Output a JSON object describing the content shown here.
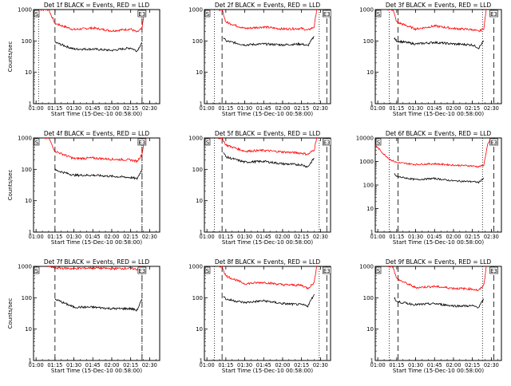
{
  "chart_data": [
    {
      "type": "line",
      "title": "Det 1f BLACK = Events, RED = LLD",
      "xlabel": "Start Time (15-Dec-10 00:58:00)",
      "ylabel": "Counts/sec",
      "yscale": "log",
      "ylim": [
        1,
        1000
      ],
      "xlim": [
        "00:58",
        "02:38"
      ],
      "x_ticks": [
        "01:00",
        "01:15",
        "01:30",
        "01:45",
        "02:00",
        "02:15",
        "02:30"
      ],
      "y_ticks": [
        "1",
        "10",
        "100",
        "1000"
      ],
      "markers": {
        "start": "S",
        "end": "E3"
      },
      "vertical_lines": {
        "dotted": [
          "01:02",
          "02:24"
        ],
        "dashed": [
          "01:15",
          "02:24"
        ]
      },
      "series": [
        {
          "color": "#ff0000",
          "x": [
            "01:03",
            "01:10",
            "01:15",
            "01:30",
            "01:45",
            "02:00",
            "02:15",
            "02:20",
            "02:24",
            "02:26"
          ],
          "values": [
            1000,
            1000,
            360,
            230,
            260,
            210,
            240,
            190,
            250,
            1000
          ]
        },
        {
          "color": "#000000",
          "x": [
            "01:15",
            "01:30",
            "01:45",
            "02:00",
            "02:15",
            "02:20",
            "02:24"
          ],
          "values": [
            90,
            55,
            55,
            50,
            60,
            48,
            90
          ]
        }
      ]
    },
    {
      "type": "line",
      "title": "Det 2f BLACK = Events, RED = LLD",
      "xlabel": "Start Time (15-Dec-10 00:58:00)",
      "ylabel": "",
      "yscale": "log",
      "ylim": [
        1,
        1000
      ],
      "xlim": [
        "00:58",
        "02:38"
      ],
      "x_ticks": [
        "01:00",
        "01:15",
        "01:30",
        "01:45",
        "02:00",
        "02:15",
        "02:30"
      ],
      "y_ticks": [
        "1",
        "10",
        "100",
        "1000"
      ],
      "markers": {
        "start": "S",
        "end": "E3"
      },
      "vertical_lines": {
        "dotted": [
          "01:06",
          "02:29"
        ],
        "dashed": [
          "01:12",
          "02:35"
        ]
      },
      "series": [
        {
          "color": "#ff0000",
          "x": [
            "01:09",
            "01:12",
            "01:15",
            "01:30",
            "01:45",
            "02:00",
            "02:15",
            "02:20",
            "02:25",
            "02:27"
          ],
          "values": [
            1000,
            1000,
            400,
            250,
            280,
            240,
            250,
            220,
            280,
            1000
          ]
        },
        {
          "color": "#000000",
          "x": [
            "01:13",
            "01:15",
            "01:30",
            "01:45",
            "02:00",
            "02:15",
            "02:20",
            "02:25"
          ],
          "values": [
            130,
            100,
            75,
            80,
            75,
            80,
            70,
            140
          ]
        }
      ]
    },
    {
      "type": "line",
      "title": "Det 3f BLACK = Events, RED = LLD",
      "xlabel": "Start Time (15-Dec-10 00:58:00)",
      "ylabel": "",
      "yscale": "log",
      "ylim": [
        1,
        1000
      ],
      "xlim": [
        "00:58",
        "02:38"
      ],
      "x_ticks": [
        "01:00",
        "01:15",
        "01:30",
        "01:45",
        "02:00",
        "02:15",
        "02:30"
      ],
      "y_ticks": [
        "1",
        "10",
        "100",
        "1000"
      ],
      "markers": {
        "start": "S",
        "end": "E3"
      },
      "vertical_lines": {
        "dotted": [
          "01:09",
          "02:23"
        ],
        "dashed": [
          "01:16",
          "02:32"
        ]
      },
      "series": [
        {
          "color": "#ff0000",
          "x": [
            "01:08",
            "01:12",
            "01:15",
            "01:30",
            "01:45",
            "02:00",
            "02:15",
            "02:20",
            "02:24",
            "02:26"
          ],
          "values": [
            1000,
            1000,
            400,
            240,
            300,
            250,
            230,
            200,
            250,
            1000
          ]
        },
        {
          "color": "#000000",
          "x": [
            "01:13",
            "01:15",
            "01:30",
            "01:45",
            "02:00",
            "02:15",
            "02:20",
            "02:24"
          ],
          "values": [
            120,
            100,
            80,
            90,
            80,
            75,
            60,
            100
          ]
        }
      ]
    },
    {
      "type": "line",
      "title": "Det 4f BLACK = Events, RED = LLD",
      "xlabel": "Start Time (15-Dec-10 00:58:00)",
      "ylabel": "Counts/sec",
      "yscale": "log",
      "ylim": [
        1,
        1000
      ],
      "xlim": [
        "00:58",
        "02:38"
      ],
      "x_ticks": [
        "01:00",
        "01:15",
        "01:30",
        "01:45",
        "02:00",
        "02:15",
        "02:30"
      ],
      "y_ticks": [
        "1",
        "10",
        "100",
        "1000"
      ],
      "markers": {
        "start": "S",
        "end": "E3"
      },
      "vertical_lines": {
        "dotted": [
          "02:24"
        ],
        "dashed": [
          "01:15",
          "02:24"
        ]
      },
      "series": [
        {
          "color": "#ff0000",
          "x": [
            "01:06",
            "01:10",
            "01:15",
            "01:30",
            "01:45",
            "02:00",
            "02:15",
            "02:20",
            "02:24",
            "02:26"
          ],
          "values": [
            1000,
            1000,
            380,
            220,
            230,
            210,
            200,
            180,
            300,
            1000
          ]
        },
        {
          "color": "#000000",
          "x": [
            "01:15",
            "01:30",
            "01:45",
            "02:00",
            "02:15",
            "02:20",
            "02:24"
          ],
          "values": [
            95,
            65,
            65,
            60,
            55,
            50,
            100
          ]
        }
      ]
    },
    {
      "type": "line",
      "title": "Det 5f BLACK = Events, RED = LLD",
      "xlabel": "Start Time (15-Dec-10 00:58:00)",
      "ylabel": "",
      "yscale": "log",
      "ylim": [
        1,
        1000
      ],
      "xlim": [
        "00:58",
        "02:38"
      ],
      "x_ticks": [
        "01:00",
        "01:15",
        "01:30",
        "01:45",
        "02:00",
        "02:15",
        "02:30"
      ],
      "y_ticks": [
        "1",
        "10",
        "100",
        "1000"
      ],
      "markers": {
        "start": "S",
        "end": "E3"
      },
      "vertical_lines": {
        "dotted": [
          "01:06",
          "02:29"
        ],
        "dashed": [
          "01:12",
          "02:35"
        ]
      },
      "series": [
        {
          "color": "#ff0000",
          "x": [
            "01:09",
            "01:12",
            "01:15",
            "01:30",
            "01:45",
            "02:00",
            "02:15",
            "02:20",
            "02:25",
            "02:27"
          ],
          "values": [
            1000,
            1000,
            600,
            380,
            400,
            360,
            330,
            300,
            420,
            1000
          ]
        },
        {
          "color": "#000000",
          "x": [
            "01:13",
            "01:15",
            "01:30",
            "01:45",
            "02:00",
            "02:15",
            "02:20",
            "02:25"
          ],
          "values": [
            350,
            250,
            170,
            180,
            150,
            140,
            120,
            230
          ]
        }
      ]
    },
    {
      "type": "line",
      "title": "Det 6f BLACK = Events, RED = LLD",
      "xlabel": "Start Time (15-Dec-10 00:58:00)",
      "ylabel": "",
      "yscale": "log",
      "ylim": [
        1,
        10000
      ],
      "xlim": [
        "00:58",
        "02:38"
      ],
      "x_ticks": [
        "01:00",
        "01:15",
        "01:30",
        "01:45",
        "02:00",
        "02:15",
        "02:30"
      ],
      "y_ticks": [
        "1",
        "10",
        "100",
        "1000",
        "10000"
      ],
      "markers": {
        "start": "S",
        "end": "E3"
      },
      "vertical_lines": {
        "dotted": [
          "01:09",
          "02:23"
        ],
        "dashed": [
          "01:16",
          "02:32"
        ]
      },
      "series": [
        {
          "color": "#ff0000",
          "x": [
            "00:58",
            "01:05",
            "01:10",
            "01:15",
            "01:30",
            "01:45",
            "02:00",
            "02:15",
            "02:20",
            "02:24",
            "02:27",
            "02:30"
          ],
          "values": [
            5000,
            2000,
            1200,
            900,
            750,
            800,
            700,
            650,
            600,
            700,
            5000,
            10000
          ]
        },
        {
          "color": "#000000",
          "x": [
            "01:13",
            "01:15",
            "01:30",
            "01:45",
            "02:00",
            "02:15",
            "02:20",
            "02:24"
          ],
          "values": [
            300,
            230,
            170,
            190,
            150,
            140,
            130,
            200
          ]
        }
      ]
    },
    {
      "type": "line",
      "title": "Det 7f BLACK = Events, RED = LLD",
      "xlabel": "Start Time (15-Dec-10 00:58:00)",
      "ylabel": "Counts/sec",
      "yscale": "log",
      "ylim": [
        1,
        1000
      ],
      "xlim": [
        "00:58",
        "02:38"
      ],
      "x_ticks": [
        "01:00",
        "01:15",
        "01:30",
        "01:45",
        "02:00",
        "02:15",
        "02:30"
      ],
      "y_ticks": [
        "1",
        "10",
        "100",
        "1000"
      ],
      "markers": {
        "start": "S",
        "end": "E3"
      },
      "vertical_lines": {
        "dotted": [
          "02:24"
        ],
        "dashed": [
          "01:15",
          "02:24"
        ]
      },
      "series": [
        {
          "color": "#ff0000",
          "x": [
            "01:06",
            "01:10",
            "01:15",
            "01:30",
            "01:45",
            "02:00",
            "02:15",
            "02:20",
            "02:24"
          ],
          "values": [
            1000,
            1000,
            900,
            850,
            900,
            850,
            870,
            800,
            1000
          ]
        },
        {
          "color": "#000000",
          "x": [
            "01:15",
            "01:30",
            "01:45",
            "02:00",
            "02:15",
            "02:20",
            "02:24"
          ],
          "values": [
            90,
            50,
            50,
            45,
            45,
            40,
            90
          ]
        }
      ]
    },
    {
      "type": "line",
      "title": "Det 8f BLACK = Events, RED = LLD",
      "xlabel": "Start Time (15-Dec-10 00:58:00)",
      "ylabel": "",
      "yscale": "log",
      "ylim": [
        1,
        1000
      ],
      "xlim": [
        "00:58",
        "02:38"
      ],
      "x_ticks": [
        "01:00",
        "01:15",
        "01:30",
        "01:45",
        "02:00",
        "02:15",
        "02:30"
      ],
      "y_ticks": [
        "1",
        "10",
        "100",
        "1000"
      ],
      "markers": {
        "start": "S",
        "end": "E3"
      },
      "vertical_lines": {
        "dotted": [
          "01:06",
          "02:29"
        ],
        "dashed": [
          "01:12",
          "02:35"
        ]
      },
      "series": [
        {
          "color": "#ff0000",
          "x": [
            "01:09",
            "01:12",
            "01:15",
            "01:30",
            "01:45",
            "02:00",
            "02:15",
            "02:20",
            "02:25",
            "02:27"
          ],
          "values": [
            1000,
            1000,
            500,
            280,
            310,
            260,
            250,
            200,
            300,
            1000
          ]
        },
        {
          "color": "#000000",
          "x": [
            "01:13",
            "01:15",
            "01:30",
            "01:45",
            "02:00",
            "02:15",
            "02:20",
            "02:25"
          ],
          "values": [
            120,
            90,
            70,
            80,
            65,
            60,
            55,
            130
          ]
        }
      ]
    },
    {
      "type": "line",
      "title": "Det 9f BLACK = Events, RED = LLD",
      "xlabel": "Start Time (15-Dec-10 00:58:00)",
      "ylabel": "",
      "yscale": "log",
      "ylim": [
        1,
        1000
      ],
      "xlim": [
        "00:58",
        "02:38"
      ],
      "x_ticks": [
        "01:00",
        "01:15",
        "01:30",
        "01:45",
        "02:00",
        "02:15",
        "02:30"
      ],
      "y_ticks": [
        "1",
        "10",
        "100",
        "1000"
      ],
      "markers": {
        "start": "S",
        "end": "E3"
      },
      "vertical_lines": {
        "dotted": [
          "01:09",
          "02:23"
        ],
        "dashed": [
          "01:16",
          "02:32"
        ]
      },
      "series": [
        {
          "color": "#ff0000",
          "x": [
            "01:08",
            "01:12",
            "01:15",
            "01:30",
            "01:45",
            "02:00",
            "02:15",
            "02:20",
            "02:24",
            "02:26"
          ],
          "values": [
            1000,
            1000,
            400,
            210,
            230,
            200,
            190,
            170,
            250,
            1000
          ]
        },
        {
          "color": "#000000",
          "x": [
            "01:13",
            "01:15",
            "01:30",
            "01:45",
            "02:00",
            "02:15",
            "02:20",
            "02:24"
          ],
          "values": [
            100,
            75,
            60,
            65,
            55,
            55,
            50,
            90
          ]
        }
      ]
    }
  ]
}
